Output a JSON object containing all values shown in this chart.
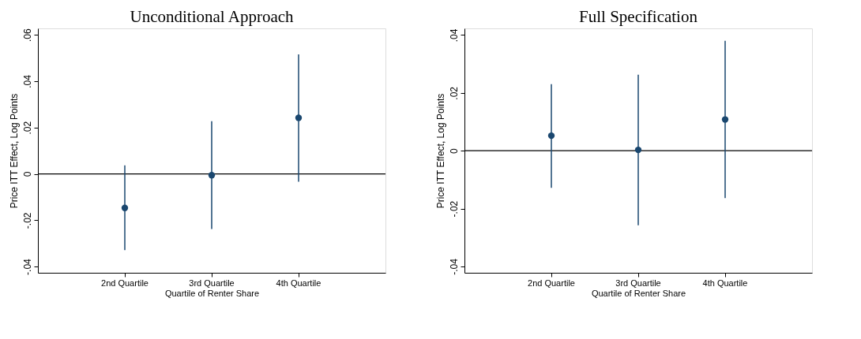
{
  "chart_data": [
    {
      "type": "scatter",
      "title": "Unconditional Approach",
      "xlabel": "Quartile of Renter Share",
      "ylabel": "Price ITT Effect, Log Points",
      "categories": [
        "2nd Quartile",
        "3rd Quartile",
        "4th Quartile"
      ],
      "series": [
        {
          "color": "#1a476f",
          "values": [
            -0.0147,
            -0.0006,
            0.0242
          ],
          "errors": [
            [
              -0.0329,
              0.0037
            ],
            [
              -0.0238,
              0.0227
            ],
            [
              -0.0034,
              0.0516
            ]
          ]
        }
      ],
      "ylim": [
        -0.0427,
        0.0628
      ],
      "yticks": [
        {
          "value": -0.04,
          "label": "-.04"
        },
        {
          "value": -0.02,
          "label": "-.02"
        },
        0,
        {
          "value": 0.02,
          "label": ".02"
        },
        {
          "value": 0.04,
          "label": ".04"
        },
        {
          "value": 0.06,
          "label": ".06"
        }
      ],
      "ref_lines": [
        {
          "axis": "y",
          "value": 0,
          "color": "#000000"
        }
      ],
      "marker": "circle",
      "grid": false
    },
    {
      "type": "scatter",
      "title": "Full Specification",
      "xlabel": "Quartile of Renter Share",
      "ylabel": "Price ITT Effect, Log Points",
      "categories": [
        "2nd Quartile",
        "3rd Quartile",
        "4th Quartile"
      ],
      "series": [
        {
          "color": "#1a476f",
          "values": [
            0.0052,
            0.0003,
            0.0108
          ],
          "errors": [
            [
              -0.0128,
              0.023
            ],
            [
              -0.0258,
              0.0263
            ],
            [
              -0.0164,
              0.038
            ]
          ]
        }
      ],
      "ylim": [
        -0.0422,
        0.0423
      ],
      "yticks": [
        {
          "value": -0.04,
          "label": "-.04"
        },
        {
          "value": -0.02,
          "label": "-.02"
        },
        0,
        {
          "value": 0.02,
          "label": ".02"
        },
        {
          "value": 0.04,
          "label": ".04"
        }
      ],
      "ref_lines": [
        {
          "axis": "y",
          "value": 0,
          "color": "#000000"
        }
      ],
      "marker": "circle",
      "grid": false
    }
  ]
}
